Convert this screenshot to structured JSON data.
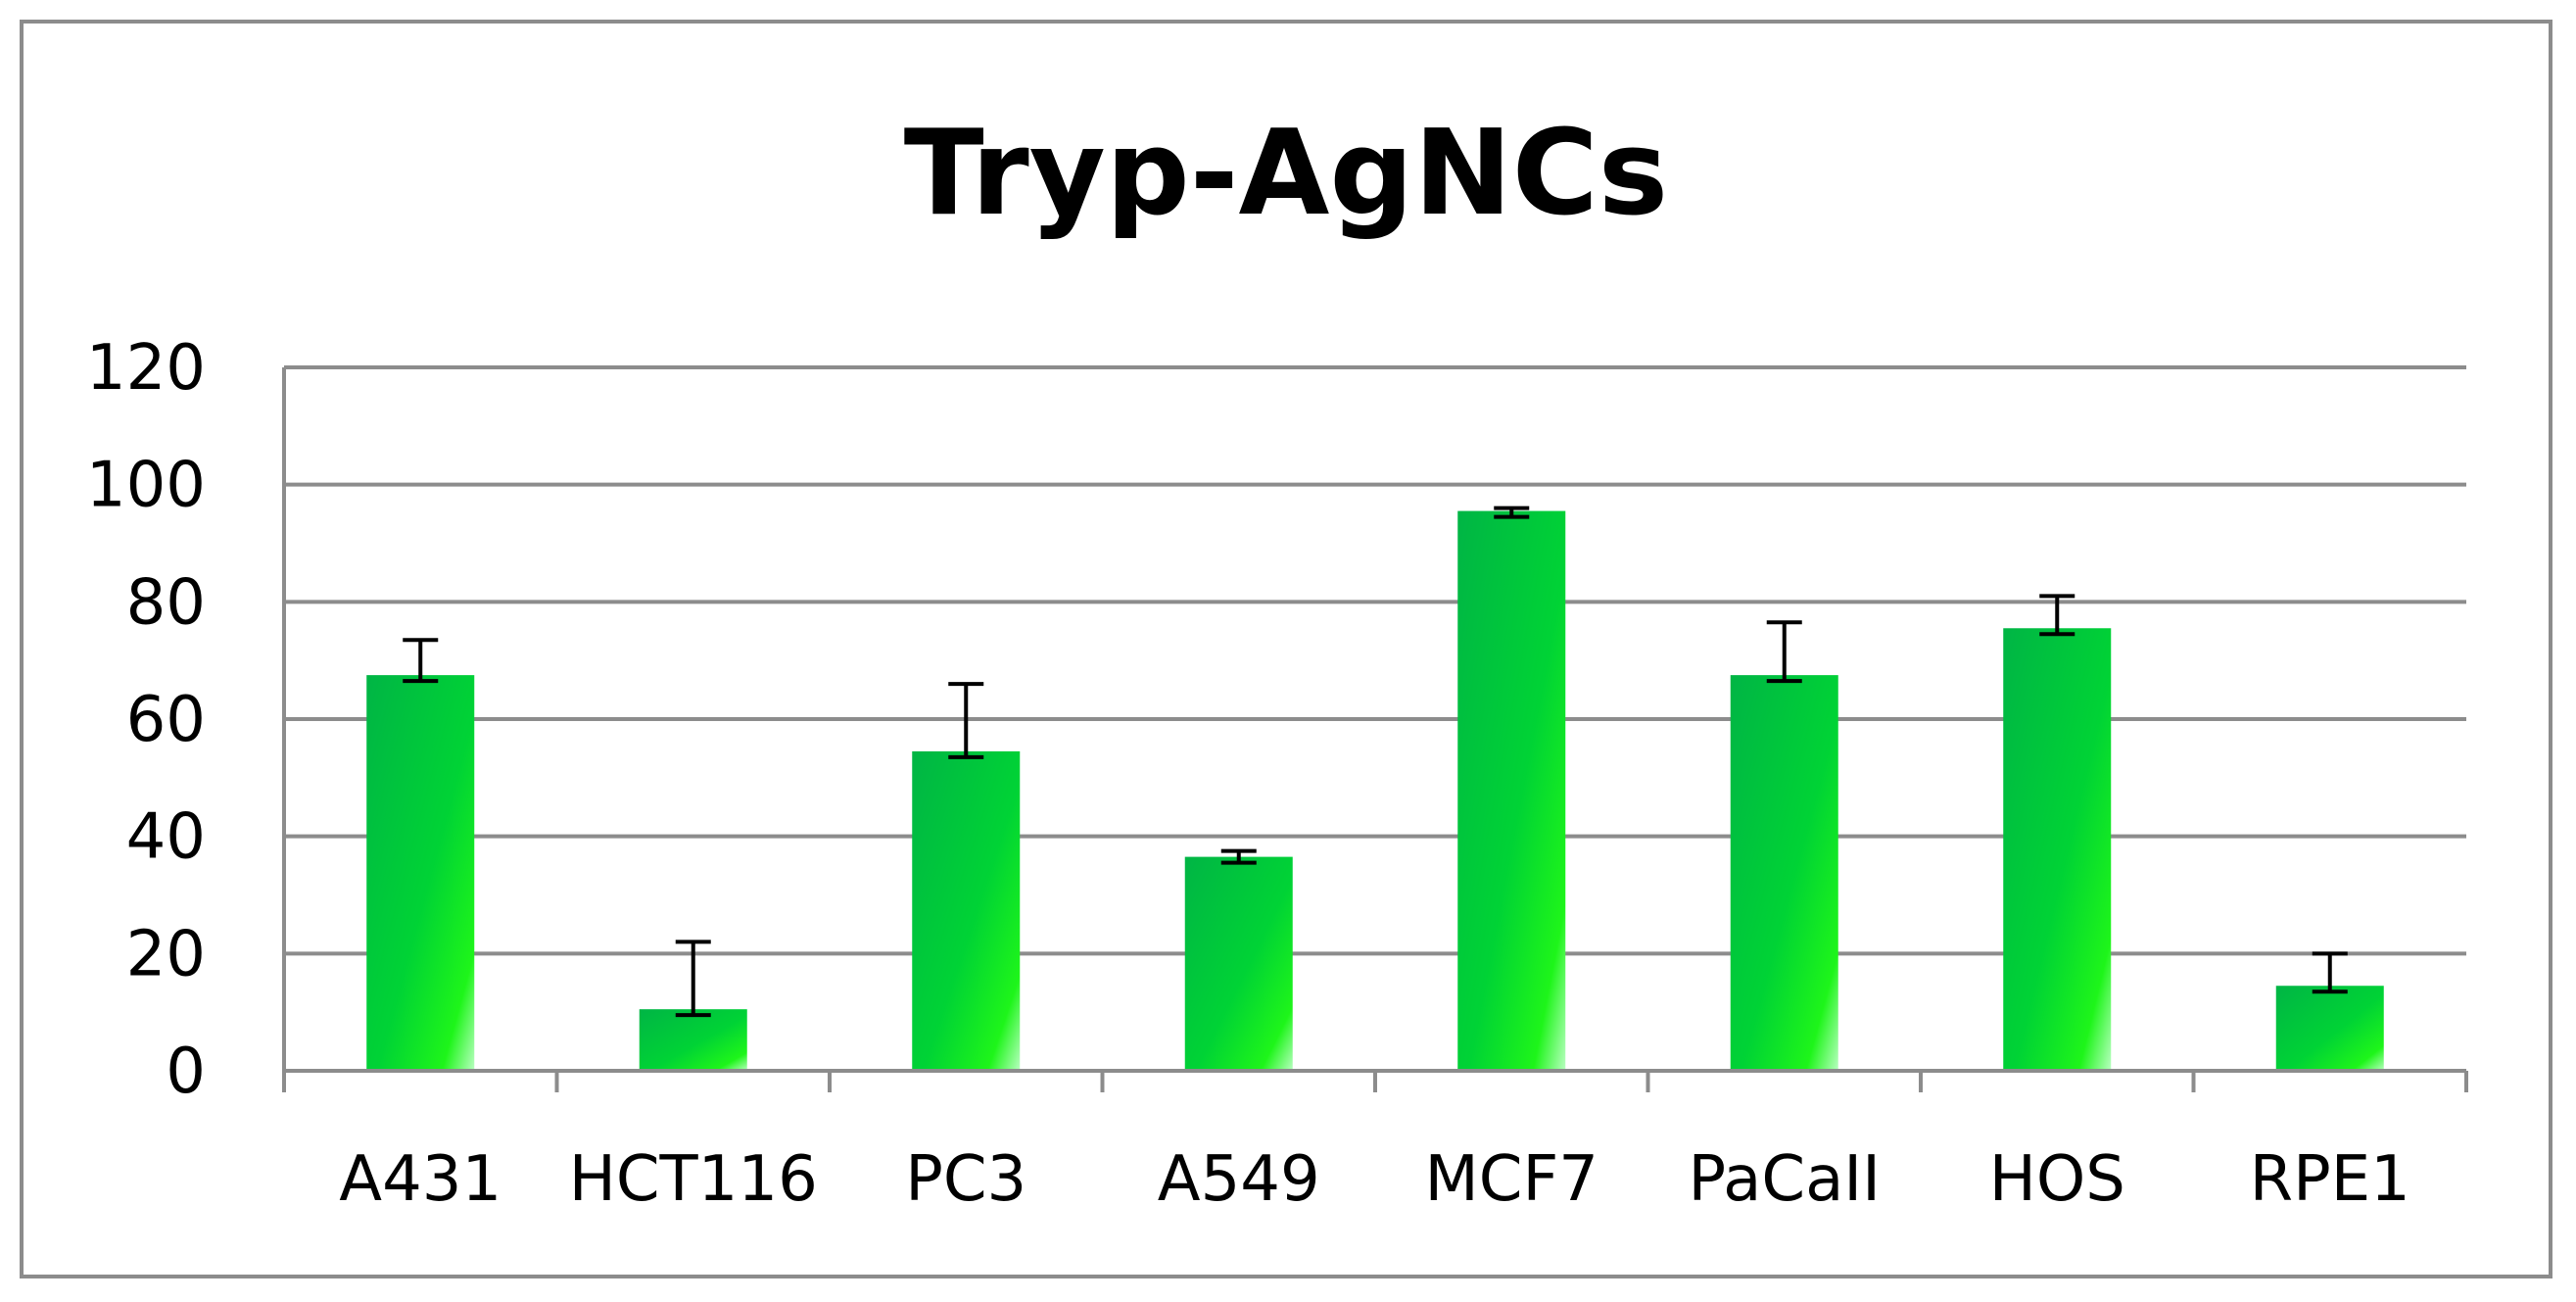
{
  "chart_data": {
    "type": "bar",
    "title": "Tryp-AgNCs",
    "xlabel": "",
    "ylabel": "",
    "ylim": [
      0,
      120
    ],
    "yticks": [
      0,
      20,
      40,
      60,
      80,
      100,
      120
    ],
    "grid": true,
    "legend": "none",
    "categories": [
      "A431",
      "HCT116",
      "PC3",
      "A549",
      "MCF7",
      "PaCaII",
      "HOS",
      "RPE1"
    ],
    "values": [
      67.5,
      10.5,
      54.5,
      36.5,
      95.5,
      67.5,
      75.5,
      14.5
    ],
    "error_low": [
      1,
      1,
      1,
      1,
      1,
      1,
      1,
      1
    ],
    "error_high": [
      6,
      11.5,
      11.5,
      1,
      0.5,
      9,
      5.5,
      5.5
    ],
    "bar_color": "#00c43a",
    "bar_highlight": "#19f020",
    "grid_color": "#8c8c8c"
  }
}
